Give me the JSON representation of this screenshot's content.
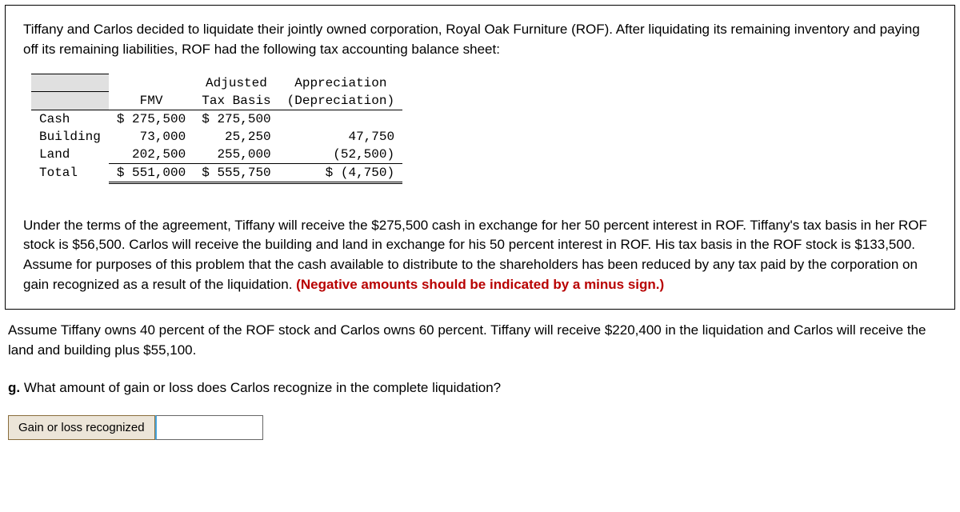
{
  "boxed": {
    "intro": "Tiffany and Carlos decided to liquidate their jointly owned corporation, Royal Oak Furniture (ROF). After liquidating its remaining inventory and paying off its remaining liabilities, ROF had the following tax accounting balance sheet:",
    "table": {
      "headers": {
        "fmv": "FMV",
        "adj1": "Adjusted",
        "adj2": "Tax Basis",
        "app1": "Appreciation",
        "app2": "(Depreciation)"
      },
      "rows": {
        "cash": {
          "label": "Cash",
          "fmv": "$ 275,500",
          "adj": "$ 275,500",
          "app": ""
        },
        "building": {
          "label": "Building",
          "fmv": "73,000",
          "adj": "25,250",
          "app": "47,750"
        },
        "land": {
          "label": "Land",
          "fmv": "202,500",
          "adj": "255,000",
          "app": "(52,500)"
        },
        "total": {
          "label": "Total",
          "fmv": "$ 551,000",
          "adj": "$ 555,750",
          "app": "$ (4,750)"
        }
      }
    },
    "details": "Under the terms of the agreement, Tiffany will receive the $275,500 cash in exchange for her 50 percent interest in ROF. Tiffany's tax basis in her ROF stock is $56,500. Carlos will receive the building and land in exchange for his 50 percent interest in ROF. His tax basis in the ROF stock is $133,500. Assume for purposes of this problem that the cash available to distribute to the shareholders has been reduced by any tax paid by the corporation on gain recognized as a result of the liquidation. ",
    "details_bold": "(Negative amounts should be indicated by a minus sign.)"
  },
  "below": {
    "scenario": "Assume Tiffany owns 40 percent of the ROF stock and Carlos owns 60 percent. Tiffany will receive $220,400 in the liquidation and Carlos will receive the land and building plus $55,100.",
    "q_prefix": "g. ",
    "q_text": "What amount of gain or loss does Carlos recognize in the complete liquidation?",
    "answer_label": "Gain or loss recognized"
  }
}
